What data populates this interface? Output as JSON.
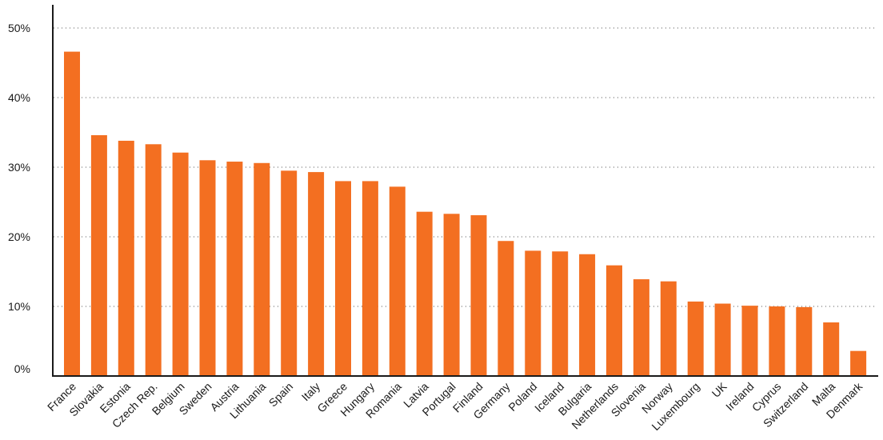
{
  "chart_data": {
    "type": "bar",
    "title": "",
    "xlabel": "",
    "ylabel": "",
    "ylim": [
      0,
      50
    ],
    "yticks": [
      0,
      10,
      20,
      30,
      40,
      50
    ],
    "ytick_labels": [
      "0%",
      "10%",
      "20%",
      "30%",
      "40%",
      "50%"
    ],
    "grid": "horizontal dotted",
    "bar_color": "#f36f21",
    "categories": [
      "France",
      "Slovakia",
      "Estonia",
      "Czech Rep.",
      "Belgium",
      "Sweden",
      "Austria",
      "Lithuania",
      "Spain",
      "Italy",
      "Greece",
      "Hungary",
      "Romania",
      "Latvia",
      "Portugal",
      "Finland",
      "Germany",
      "Poland",
      "Iceland",
      "Bulgaria",
      "Netherlands",
      "Slovenia",
      "Norway",
      "Luxembourg",
      "UK",
      "Ireland",
      "Cyprus",
      "Switzerland",
      "Malta",
      "Denmark"
    ],
    "values": [
      46.6,
      34.6,
      33.8,
      33.3,
      32.1,
      31.0,
      30.8,
      30.6,
      29.5,
      29.3,
      28.0,
      28.0,
      27.2,
      23.6,
      23.3,
      23.1,
      19.4,
      18.0,
      17.9,
      17.5,
      15.9,
      13.9,
      13.6,
      10.7,
      10.4,
      10.1,
      10.0,
      9.9,
      7.7,
      3.6
    ]
  }
}
